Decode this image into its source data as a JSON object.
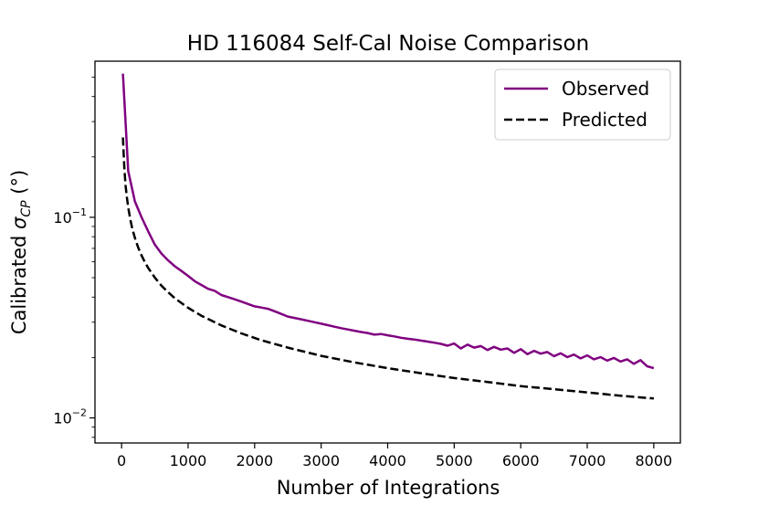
{
  "chart_data": {
    "type": "line",
    "title": "HD 116084 Self-Cal Noise Comparison",
    "xlabel": "Number of Integrations",
    "ylabel_prefix": "Calibrated ",
    "ylabel_symbol": "σ",
    "ylabel_subscript": "CP",
    "ylabel_suffix": " (°)",
    "yscale": "log",
    "xlim": [
      -400,
      8400
    ],
    "ylim": [
      0.0075,
      0.6
    ],
    "x_ticks": [
      0,
      1000,
      2000,
      3000,
      4000,
      5000,
      6000,
      7000,
      8000
    ],
    "x_tick_labels": [
      "0",
      "1000",
      "2000",
      "3000",
      "4000",
      "5000",
      "6000",
      "7000",
      "8000"
    ],
    "y_major_ticks": [
      0.01,
      0.1
    ],
    "y_tick_labels": [
      {
        "base": "10",
        "exp": "−2"
      },
      {
        "base": "10",
        "exp": "−1"
      }
    ],
    "legend_position": "top-right",
    "series": [
      {
        "name": "Observed",
        "color": "#800080",
        "style": "solid",
        "x": [
          20,
          100,
          200,
          300,
          400,
          500,
          600,
          700,
          800,
          900,
          1000,
          1100,
          1200,
          1300,
          1400,
          1500,
          1600,
          1700,
          1800,
          1900,
          2000,
          2100,
          2200,
          2300,
          2400,
          2500,
          2600,
          2700,
          2800,
          2900,
          3000,
          3100,
          3200,
          3300,
          3400,
          3500,
          3600,
          3700,
          3800,
          3900,
          4000,
          4100,
          4200,
          4300,
          4400,
          4500,
          4600,
          4700,
          4800,
          4900,
          5000,
          5100,
          5200,
          5300,
          5400,
          5500,
          5600,
          5700,
          5800,
          5900,
          6000,
          6100,
          6200,
          6300,
          6400,
          6500,
          6600,
          6700,
          6800,
          6900,
          7000,
          7100,
          7200,
          7300,
          7400,
          7500,
          7600,
          7700,
          7800,
          7900,
          8000
        ],
        "values": [
          0.52,
          0.17,
          0.12,
          0.1,
          0.085,
          0.073,
          0.066,
          0.061,
          0.057,
          0.054,
          0.051,
          0.048,
          0.046,
          0.044,
          0.043,
          0.041,
          0.04,
          0.039,
          0.038,
          0.037,
          0.036,
          0.0355,
          0.035,
          0.034,
          0.033,
          0.032,
          0.0315,
          0.031,
          0.0305,
          0.03,
          0.0295,
          0.029,
          0.0285,
          0.028,
          0.0276,
          0.0272,
          0.0268,
          0.0265,
          0.026,
          0.0262,
          0.0258,
          0.0255,
          0.0251,
          0.0248,
          0.0246,
          0.0243,
          0.024,
          0.0237,
          0.0234,
          0.0229,
          0.0235,
          0.0222,
          0.0232,
          0.0224,
          0.0228,
          0.0218,
          0.0226,
          0.0219,
          0.0222,
          0.0211,
          0.022,
          0.0208,
          0.0216,
          0.0209,
          0.0213,
          0.0203,
          0.021,
          0.0201,
          0.0207,
          0.0198,
          0.0205,
          0.0196,
          0.0201,
          0.0193,
          0.0199,
          0.0191,
          0.0196,
          0.0186,
          0.0194,
          0.0181,
          0.0177
        ]
      },
      {
        "name": "Predicted",
        "color": "#000000",
        "style": "dashed",
        "x": [
          20,
          40,
          60,
          80,
          100,
          130,
          160,
          200,
          250,
          300,
          350,
          400,
          500,
          600,
          700,
          800,
          1000,
          1200,
          1500,
          1800,
          2100,
          2500,
          3000,
          3500,
          4000,
          4500,
          5000,
          5500,
          6000,
          6500,
          7000,
          7500,
          8000
        ],
        "values": [
          0.25,
          0.177,
          0.144,
          0.125,
          0.112,
          0.098,
          0.088,
          0.079,
          0.0707,
          0.0645,
          0.0598,
          0.0559,
          0.05,
          0.0456,
          0.0423,
          0.0395,
          0.0354,
          0.0323,
          0.0289,
          0.0264,
          0.0244,
          0.0224,
          0.0204,
          0.0189,
          0.0177,
          0.0167,
          0.0158,
          0.0151,
          0.0144,
          0.0139,
          0.0134,
          0.0129,
          0.0125
        ]
      }
    ]
  }
}
